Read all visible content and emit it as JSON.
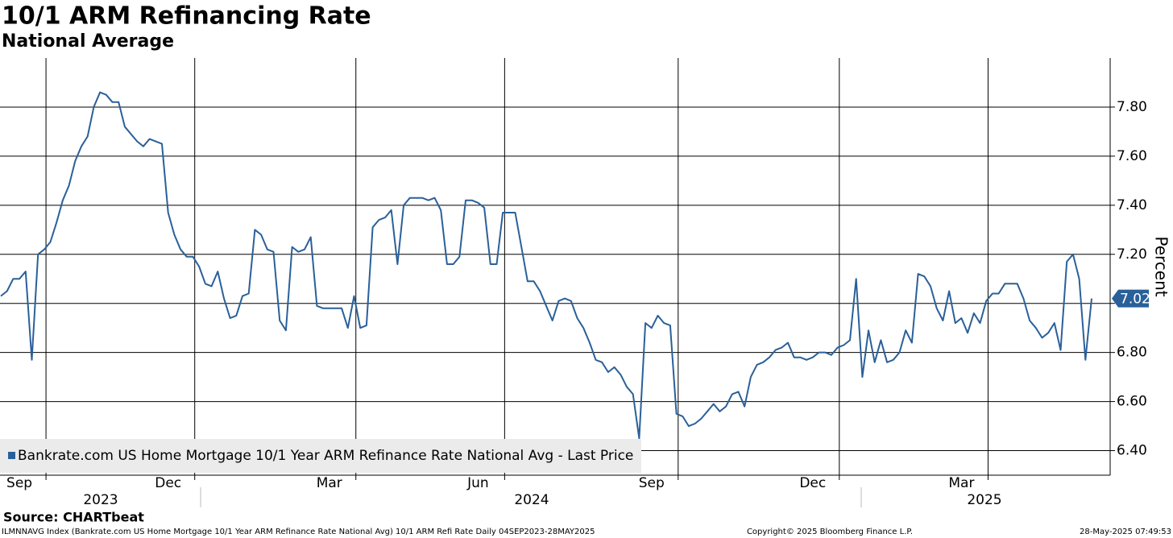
{
  "chart_data": {
    "type": "line",
    "title": "10/1 ARM Refinancing Rate",
    "subtitle": "National Average",
    "y_axis_label": "Percent",
    "source": "Source: CHARTbeat",
    "footer_left": "ILMNNAVG Index (Bankrate.com US Home Mortgage 10/1 Year ARM Refinance Rate National Avg) 10/1 ARM Refi Rate  Daily 04SEP2023-28MAY2025",
    "footer_center": "Copyright© 2025 Bloomberg Finance L.P.",
    "footer_right": "28-May-2025 07:49:53",
    "x_groups": [
      "2023",
      "2024",
      "2025"
    ],
    "categories": [
      null,
      null,
      null,
      "Sep",
      null,
      null,
      null,
      null,
      null,
      null,
      null,
      null,
      null,
      null,
      null,
      null,
      null,
      null,
      null,
      null,
      null,
      null,
      null,
      null,
      null,
      null,
      null,
      "Dec",
      null,
      null,
      null,
      null,
      null,
      null,
      null,
      null,
      null,
      null,
      null,
      null,
      null,
      null,
      null,
      null,
      null,
      null,
      null,
      null,
      null,
      null,
      null,
      null,
      null,
      "Mar",
      null,
      null,
      null,
      null,
      null,
      null,
      null,
      null,
      null,
      null,
      null,
      null,
      null,
      null,
      null,
      null,
      null,
      null,
      null,
      null,
      null,
      null,
      null,
      "Jun",
      null,
      null,
      null,
      null,
      null,
      null,
      null,
      null,
      null,
      null,
      null,
      null,
      null,
      null,
      null,
      null,
      null,
      null,
      null,
      null,
      null,
      null,
      null,
      null,
      null,
      null,
      null,
      "Sep",
      null,
      null,
      null,
      null,
      null,
      null,
      null,
      null,
      null,
      null,
      null,
      null,
      null,
      null,
      null,
      null,
      null,
      null,
      null,
      null,
      null,
      null,
      null,
      null,
      null,
      "Dec",
      null,
      null,
      null,
      null,
      null,
      null,
      null,
      null,
      null,
      null,
      null,
      null,
      null,
      null,
      null,
      null,
      null,
      null,
      null,
      null,
      null,
      null,
      null,
      "Mar",
      null,
      null,
      null,
      null,
      null,
      null,
      null,
      null,
      null,
      null,
      null,
      null,
      null,
      null,
      null,
      null,
      null,
      null,
      null,
      null,
      null
    ],
    "series": [
      {
        "name": "Bankrate.com US Home Mortgage 10/1 Year ARM Refinance Rate National Avg - Last Price",
        "color": "#2a6099",
        "values": [
          7.03,
          7.05,
          7.1,
          7.1,
          7.13,
          6.77,
          7.2,
          7.22,
          7.25,
          7.33,
          7.42,
          7.48,
          7.58,
          7.64,
          7.68,
          7.8,
          7.86,
          7.85,
          7.82,
          7.82,
          7.72,
          7.69,
          7.66,
          7.64,
          7.67,
          7.66,
          7.65,
          7.37,
          7.28,
          7.22,
          7.19,
          7.19,
          7.15,
          7.08,
          7.07,
          7.13,
          7.02,
          6.94,
          6.95,
          7.03,
          7.04,
          7.3,
          7.28,
          7.22,
          7.21,
          6.93,
          6.89,
          7.23,
          7.21,
          7.22,
          7.27,
          6.99,
          6.98,
          6.98,
          6.98,
          6.98,
          6.9,
          7.03,
          6.9,
          6.91,
          7.31,
          7.34,
          7.35,
          7.38,
          7.16,
          7.4,
          7.43,
          7.43,
          7.43,
          7.42,
          7.43,
          7.38,
          7.16,
          7.16,
          7.19,
          7.42,
          7.42,
          7.41,
          7.39,
          7.16,
          7.16,
          7.37,
          7.37,
          7.37,
          7.23,
          7.09,
          7.09,
          7.05,
          6.99,
          6.93,
          7.01,
          7.02,
          7.01,
          6.94,
          6.9,
          6.84,
          6.77,
          6.76,
          6.72,
          6.74,
          6.71,
          6.66,
          6.63,
          6.45,
          6.92,
          6.9,
          6.95,
          6.92,
          6.91,
          6.55,
          6.54,
          6.5,
          6.51,
          6.53,
          6.56,
          6.59,
          6.56,
          6.58,
          6.63,
          6.64,
          6.58,
          6.7,
          6.75,
          6.76,
          6.78,
          6.81,
          6.82,
          6.84,
          6.78,
          6.78,
          6.77,
          6.78,
          6.8,
          6.8,
          6.79,
          6.82,
          6.83,
          6.85,
          7.1,
          6.7,
          6.89,
          6.76,
          6.85,
          6.76,
          6.77,
          6.8,
          6.89,
          6.84,
          7.12,
          7.11,
          7.07,
          6.98,
          6.93,
          7.05,
          6.92,
          6.94,
          6.88,
          6.96,
          6.92,
          7.01,
          7.04,
          7.04,
          7.08,
          7.08,
          7.08,
          7.02,
          6.93,
          6.9,
          6.86,
          6.88,
          6.92,
          6.81,
          7.17,
          7.2,
          7.1,
          6.77,
          7.02
        ]
      }
    ],
    "ylim": [
      6.3,
      8.0
    ],
    "yticks": [
      {
        "value": 6.4,
        "label": "6.40"
      },
      {
        "value": 6.6,
        "label": "6.60"
      },
      {
        "value": 6.8,
        "label": "6.80"
      },
      {
        "value": 7.0,
        "label": "7.00"
      },
      {
        "value": 7.2,
        "label": "7.20"
      },
      {
        "value": 7.4,
        "label": "7.40"
      },
      {
        "value": 7.6,
        "label": "7.60"
      },
      {
        "value": 7.8,
        "label": "7.80"
      }
    ],
    "grid": true,
    "legend": "bottom-left"
  }
}
